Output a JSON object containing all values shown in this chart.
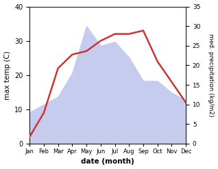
{
  "months": [
    "Jan",
    "Feb",
    "Mar",
    "Apr",
    "May",
    "Jun",
    "Jul",
    "Aug",
    "Sep",
    "Oct",
    "Nov",
    "Dec"
  ],
  "month_indices": [
    1,
    2,
    3,
    4,
    5,
    6,
    7,
    8,
    9,
    10,
    11,
    12
  ],
  "max_temp": [
    2,
    9,
    22,
    26,
    27,
    30,
    32,
    32,
    33,
    24,
    18,
    12
  ],
  "precipitation": [
    8,
    10,
    12,
    18,
    30,
    25,
    26,
    22,
    16,
    16,
    13,
    11
  ],
  "temp_ylim": [
    0,
    40
  ],
  "precip_ylim": [
    0,
    35
  ],
  "temp_yticks": [
    0,
    10,
    20,
    30,
    40
  ],
  "precip_yticks": [
    0,
    5,
    10,
    15,
    20,
    25,
    30,
    35
  ],
  "temp_color": "#cc3333",
  "precip_fill_color": "#c5ccee",
  "xlabel": "date (month)",
  "ylabel_left": "max temp (C)",
  "ylabel_right": "med. precipitation (kg/m2)",
  "background_color": "#ffffff"
}
